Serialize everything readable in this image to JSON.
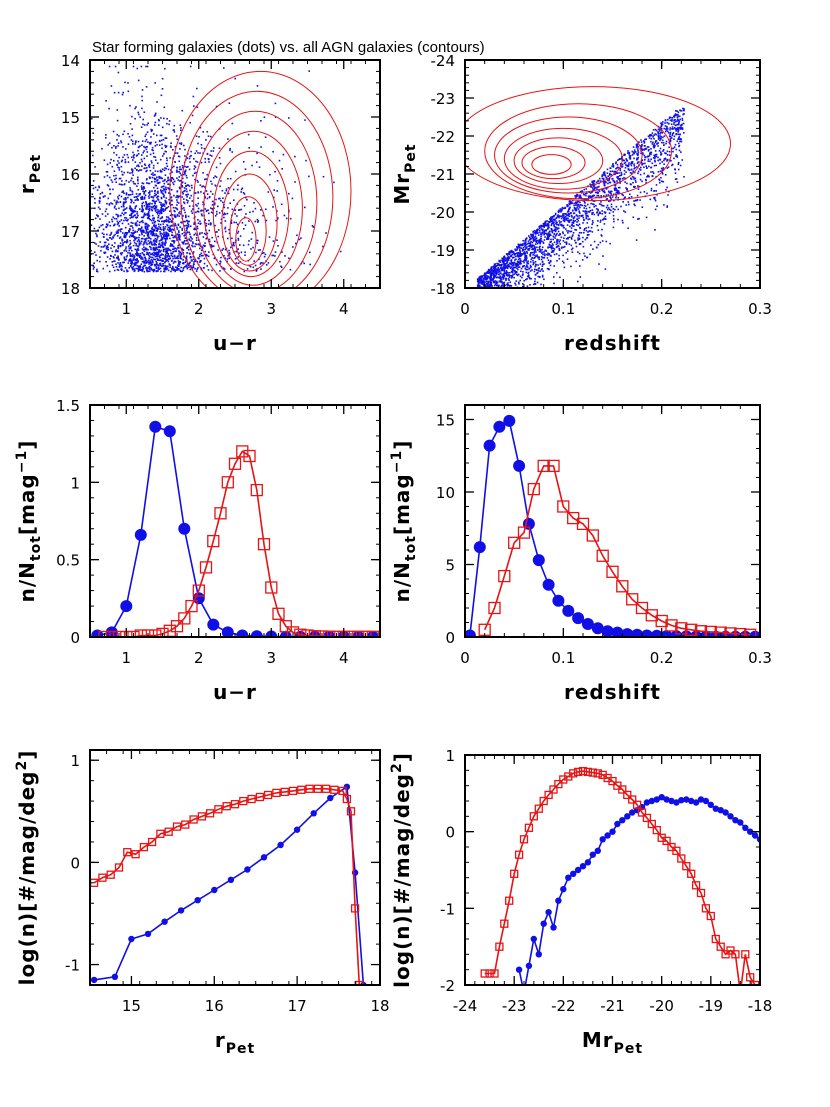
{
  "figure": {
    "title": "Star forming galaxies (dots) vs. all AGN galaxies (contours)"
  },
  "colors": {
    "sf": "#1010e6",
    "agn": "#e61414",
    "axis": "#000000"
  },
  "chart_data": [
    {
      "id": "p1",
      "type": "scatter",
      "xlabel": "u−r",
      "ylabel": "r",
      "ylabel_sub": "Pet",
      "xlim": [
        0.5,
        4.5
      ],
      "ylim": [
        18,
        14
      ],
      "xticks": [
        1,
        2,
        3,
        4
      ],
      "xtick_labels": [
        "1",
        "2",
        "3",
        "4"
      ],
      "yticks": [
        14,
        15,
        16,
        17,
        18
      ],
      "ytick_labels": [
        "14",
        "15",
        "16",
        "17",
        "18"
      ],
      "series": [
        {
          "name": "Star forming galaxies (dots)",
          "kind": "scatter-cloud",
          "color": "sf"
        },
        {
          "name": "All AGN galaxies (contours)",
          "kind": "contours",
          "color": "agn",
          "levels": [
            {
              "cx": 2.85,
              "cy": 16.3,
              "rx": 1.25,
              "ry": 2.1
            },
            {
              "cx": 2.8,
              "cy": 16.4,
              "rx": 1.05,
              "ry": 1.85
            },
            {
              "cx": 2.78,
              "cy": 16.5,
              "rx": 0.85,
              "ry": 1.6
            },
            {
              "cx": 2.75,
              "cy": 16.6,
              "rx": 0.68,
              "ry": 1.35
            },
            {
              "cx": 2.72,
              "cy": 16.7,
              "rx": 0.52,
              "ry": 1.1
            },
            {
              "cx": 2.7,
              "cy": 16.85,
              "rx": 0.38,
              "ry": 0.85
            },
            {
              "cx": 2.68,
              "cy": 17.0,
              "rx": 0.25,
              "ry": 0.6
            },
            {
              "cx": 2.65,
              "cy": 17.15,
              "rx": 0.14,
              "ry": 0.38
            }
          ]
        }
      ]
    },
    {
      "id": "p2",
      "type": "scatter",
      "xlabel": "redshift",
      "ylabel": "Mr",
      "ylabel_sub": "Pet",
      "xlim": [
        0,
        0.3
      ],
      "ylim": [
        -18,
        -24
      ],
      "xticks": [
        0,
        0.1,
        0.2,
        0.3
      ],
      "xtick_labels": [
        "0",
        "0.1",
        "0.2",
        "0.3"
      ],
      "yticks": [
        -24,
        -23,
        -22,
        -21,
        -20,
        -19,
        -18
      ],
      "ytick_labels": [
        "-24",
        "-23",
        "-22",
        "-21",
        "-20",
        "-19",
        "-18"
      ],
      "series": [
        {
          "name": "Star forming galaxies (dots)",
          "kind": "scatter-cloud",
          "color": "sf"
        },
        {
          "name": "All AGN galaxies (contours)",
          "kind": "contours",
          "color": "agn",
          "levels": [
            {
              "cx": 0.13,
              "cy": -21.8,
              "rx": 0.14,
              "ry": 1.5
            },
            {
              "cx": 0.115,
              "cy": -21.6,
              "rx": 0.095,
              "ry": 1.25
            },
            {
              "cx": 0.105,
              "cy": -21.5,
              "rx": 0.075,
              "ry": 1.0
            },
            {
              "cx": 0.1,
              "cy": -21.4,
              "rx": 0.06,
              "ry": 0.8
            },
            {
              "cx": 0.095,
              "cy": -21.35,
              "rx": 0.045,
              "ry": 0.6
            },
            {
              "cx": 0.09,
              "cy": -21.3,
              "rx": 0.032,
              "ry": 0.42
            },
            {
              "cx": 0.088,
              "cy": -21.25,
              "rx": 0.02,
              "ry": 0.26
            }
          ]
        }
      ]
    },
    {
      "id": "p3",
      "type": "line",
      "xlabel": "u−r",
      "ylabel": "n/N",
      "ylabel_sub": "tot",
      "ylabel_unit": "[mag",
      "ylabel_sup": "−1",
      "ylabel_close": "]",
      "xlim": [
        0.5,
        4.5
      ],
      "ylim": [
        0,
        1.5
      ],
      "xticks": [
        1,
        2,
        3,
        4
      ],
      "xtick_labels": [
        "1",
        "2",
        "3",
        "4"
      ],
      "yticks": [
        0,
        0.5,
        1,
        1.5
      ],
      "ytick_labels": [
        "0",
        "0.5",
        "1",
        "1.5"
      ],
      "series": [
        {
          "name": "Star forming",
          "color": "sf",
          "marker": "circle",
          "x": [
            0.6,
            0.8,
            1.0,
            1.2,
            1.4,
            1.6,
            1.8,
            2.0,
            2.2,
            2.4,
            2.6,
            2.8,
            3.0,
            3.2,
            3.4,
            3.6,
            3.8,
            4.0,
            4.2,
            4.4
          ],
          "y": [
            0.01,
            0.03,
            0.2,
            0.66,
            1.36,
            1.33,
            0.7,
            0.25,
            0.08,
            0.03,
            0.01,
            0.005,
            0.003,
            0.002,
            0.001,
            0.001,
            0.001,
            0.001,
            0.001,
            0.001
          ]
        },
        {
          "name": "AGN",
          "color": "agn",
          "marker": "square",
          "x": [
            0.7,
            0.8,
            0.9,
            1.0,
            1.1,
            1.2,
            1.3,
            1.4,
            1.5,
            1.6,
            1.7,
            1.8,
            1.9,
            2.0,
            2.1,
            2.2,
            2.3,
            2.4,
            2.5,
            2.6,
            2.7,
            2.8,
            2.9,
            3.0,
            3.1,
            3.2,
            3.3,
            3.4,
            3.5,
            3.6,
            3.7,
            3.8,
            3.9,
            4.0,
            4.1,
            4.2,
            4.3,
            4.4
          ],
          "y": [
            0.0,
            0.0,
            0.0,
            0.0,
            0.0,
            0.01,
            0.01,
            0.01,
            0.02,
            0.04,
            0.07,
            0.12,
            0.2,
            0.3,
            0.45,
            0.62,
            0.8,
            1.0,
            1.12,
            1.2,
            1.17,
            0.95,
            0.6,
            0.32,
            0.15,
            0.07,
            0.03,
            0.015,
            0.01,
            0.005,
            0.003,
            0.002,
            0.001,
            0.001,
            0.001,
            0.001,
            0.001,
            0.001
          ]
        }
      ]
    },
    {
      "id": "p4",
      "type": "line",
      "xlabel": "redshift",
      "ylabel": "n/N",
      "ylabel_sub": "tot",
      "ylabel_unit": "[mag",
      "ylabel_sup": "−1",
      "ylabel_close": "]",
      "xlim": [
        0,
        0.3
      ],
      "ylim": [
        0,
        16
      ],
      "xticks": [
        0,
        0.1,
        0.2,
        0.3
      ],
      "xtick_labels": [
        "0",
        "0.1",
        "0.2",
        "0.3"
      ],
      "yticks": [
        0,
        5,
        10,
        15
      ],
      "ytick_labels": [
        "0",
        "5",
        "10",
        "15"
      ],
      "series": [
        {
          "name": "Star forming",
          "color": "sf",
          "marker": "circle",
          "x": [
            0.005,
            0.015,
            0.025,
            0.035,
            0.045,
            0.055,
            0.065,
            0.075,
            0.085,
            0.095,
            0.105,
            0.115,
            0.125,
            0.135,
            0.145,
            0.155,
            0.165,
            0.175,
            0.185,
            0.195,
            0.205,
            0.215,
            0.225,
            0.235,
            0.245,
            0.255,
            0.265,
            0.275,
            0.285,
            0.295
          ],
          "y": [
            0.1,
            6.2,
            13.2,
            14.5,
            14.9,
            11.8,
            7.8,
            5.3,
            3.6,
            2.5,
            1.8,
            1.3,
            0.9,
            0.6,
            0.4,
            0.3,
            0.2,
            0.15,
            0.1,
            0.08,
            0.06,
            0.05,
            0.04,
            0.03,
            0.03,
            0.02,
            0.02,
            0.02,
            0.02,
            0.02
          ]
        },
        {
          "name": "AGN",
          "color": "agn",
          "marker": "square",
          "x": [
            0.02,
            0.03,
            0.04,
            0.05,
            0.06,
            0.07,
            0.08,
            0.09,
            0.1,
            0.11,
            0.12,
            0.13,
            0.14,
            0.15,
            0.16,
            0.17,
            0.18,
            0.19,
            0.2,
            0.21,
            0.22,
            0.23,
            0.24,
            0.25,
            0.26,
            0.27,
            0.28,
            0.29
          ],
          "y": [
            0.5,
            2.0,
            4.2,
            6.5,
            7.2,
            10.2,
            11.8,
            11.8,
            9.0,
            8.2,
            7.8,
            7.0,
            5.6,
            4.5,
            3.5,
            2.6,
            2.0,
            1.5,
            1.1,
            0.8,
            0.6,
            0.5,
            0.4,
            0.35,
            0.3,
            0.25,
            0.2,
            0.15
          ]
        }
      ]
    },
    {
      "id": "p5",
      "type": "line",
      "xlabel": "r",
      "xlabel_sub": "Pet",
      "ylabel": "log(n)[#/mag/deg",
      "ylabel_sup": "2",
      "ylabel_close": "]",
      "xlim": [
        14.5,
        18
      ],
      "ylim": [
        -1.2,
        1.1
      ],
      "xticks": [
        15,
        16,
        17,
        18
      ],
      "xtick_labels": [
        "15",
        "16",
        "17",
        "18"
      ],
      "yticks": [
        -1,
        0,
        1
      ],
      "ytick_labels": [
        "-1",
        "0",
        "1"
      ],
      "series": [
        {
          "name": "Star forming",
          "color": "sf",
          "marker": "dot",
          "x": [
            14.55,
            14.8,
            15.0,
            15.2,
            15.4,
            15.6,
            15.8,
            16.0,
            16.2,
            16.4,
            16.6,
            16.8,
            17.0,
            17.2,
            17.4,
            17.6,
            17.7,
            17.8
          ],
          "y": [
            -1.15,
            -1.12,
            -0.75,
            -0.7,
            -0.58,
            -0.47,
            -0.37,
            -0.27,
            -0.17,
            -0.07,
            0.05,
            0.17,
            0.32,
            0.48,
            0.63,
            0.74,
            -0.1,
            -1.2
          ]
        },
        {
          "name": "AGN",
          "color": "agn",
          "marker": "square",
          "x": [
            14.55,
            14.65,
            14.75,
            14.85,
            14.95,
            15.05,
            15.15,
            15.25,
            15.35,
            15.45,
            15.55,
            15.65,
            15.75,
            15.85,
            15.95,
            16.05,
            16.15,
            16.25,
            16.35,
            16.45,
            16.55,
            16.65,
            16.75,
            16.85,
            16.95,
            17.05,
            17.15,
            17.25,
            17.35,
            17.45,
            17.55,
            17.6,
            17.65,
            17.7,
            17.75
          ],
          "y": [
            -0.2,
            -0.15,
            -0.12,
            -0.05,
            0.1,
            0.08,
            0.15,
            0.2,
            0.28,
            0.3,
            0.35,
            0.37,
            0.42,
            0.45,
            0.48,
            0.52,
            0.55,
            0.57,
            0.6,
            0.62,
            0.64,
            0.66,
            0.68,
            0.69,
            0.7,
            0.71,
            0.72,
            0.72,
            0.72,
            0.71,
            0.7,
            0.62,
            0.5,
            -0.45,
            -1.2
          ]
        }
      ]
    },
    {
      "id": "p6",
      "type": "line",
      "xlabel": "Mr",
      "xlabel_sub": "Pet",
      "ylabel": "log(n)[#/mag/deg",
      "ylabel_sup": "2",
      "ylabel_close": "]",
      "xlim": [
        -24,
        -18
      ],
      "ylim": [
        -2,
        1
      ],
      "xticks": [
        -24,
        -23,
        -22,
        -21,
        -20,
        -19,
        -18
      ],
      "xtick_labels": [
        "-24",
        "-23",
        "-22",
        "-21",
        "-20",
        "-19",
        "-18"
      ],
      "yticks": [
        -2,
        -1,
        0,
        1
      ],
      "ytick_labels": [
        "-2",
        "-1",
        "0",
        "1"
      ],
      "series": [
        {
          "name": "Star forming",
          "color": "sf",
          "marker": "dot",
          "x": [
            -22.9,
            -22.8,
            -22.7,
            -22.6,
            -22.5,
            -22.4,
            -22.3,
            -22.2,
            -22.1,
            -22.0,
            -21.9,
            -21.8,
            -21.7,
            -21.6,
            -21.5,
            -21.4,
            -21.3,
            -21.2,
            -21.1,
            -21.0,
            -20.9,
            -20.8,
            -20.7,
            -20.6,
            -20.5,
            -20.4,
            -20.3,
            -20.2,
            -20.1,
            -20.0,
            -19.9,
            -19.8,
            -19.7,
            -19.6,
            -19.5,
            -19.4,
            -19.3,
            -19.2,
            -19.1,
            -19.0,
            -18.9,
            -18.8,
            -18.7,
            -18.6,
            -18.5,
            -18.4,
            -18.3,
            -18.2,
            -18.1,
            -18.0
          ],
          "y": [
            -1.8,
            -2.1,
            -1.75,
            -1.4,
            -1.6,
            -1.2,
            -1.05,
            -1.25,
            -0.9,
            -0.75,
            -0.6,
            -0.55,
            -0.5,
            -0.45,
            -0.4,
            -0.3,
            -0.25,
            -0.1,
            -0.05,
            0.0,
            0.1,
            0.15,
            0.2,
            0.25,
            0.28,
            0.32,
            0.38,
            0.4,
            0.42,
            0.45,
            0.42,
            0.4,
            0.38,
            0.41,
            0.42,
            0.4,
            0.38,
            0.42,
            0.4,
            0.35,
            0.3,
            0.28,
            0.25,
            0.2,
            0.15,
            0.12,
            0.05,
            0.0,
            -0.05,
            -0.1
          ]
        },
        {
          "name": "AGN",
          "color": "agn",
          "marker": "square",
          "x": [
            -23.6,
            -23.5,
            -23.4,
            -23.3,
            -23.2,
            -23.1,
            -23.0,
            -22.9,
            -22.8,
            -22.7,
            -22.6,
            -22.5,
            -22.4,
            -22.3,
            -22.2,
            -22.1,
            -22.0,
            -21.9,
            -21.8,
            -21.7,
            -21.6,
            -21.5,
            -21.4,
            -21.3,
            -21.2,
            -21.1,
            -21.0,
            -20.9,
            -20.8,
            -20.7,
            -20.6,
            -20.5,
            -20.4,
            -20.3,
            -20.2,
            -20.1,
            -20.0,
            -19.9,
            -19.8,
            -19.7,
            -19.6,
            -19.5,
            -19.4,
            -19.3,
            -19.2,
            -19.1,
            -19.0,
            -18.9,
            -18.8,
            -18.7,
            -18.6,
            -18.5,
            -18.4,
            -18.3,
            -18.2,
            -18.1
          ],
          "y": [
            -1.85,
            -1.85,
            -1.85,
            -1.5,
            -1.2,
            -0.9,
            -0.55,
            -0.3,
            -0.1,
            0.05,
            0.2,
            0.3,
            0.4,
            0.48,
            0.55,
            0.62,
            0.68,
            0.72,
            0.76,
            0.78,
            0.79,
            0.78,
            0.77,
            0.76,
            0.74,
            0.7,
            0.66,
            0.6,
            0.55,
            0.48,
            0.42,
            0.35,
            0.25,
            0.18,
            0.1,
            0.02,
            -0.08,
            -0.12,
            -0.2,
            -0.25,
            -0.35,
            -0.45,
            -0.55,
            -0.7,
            -0.8,
            -1.0,
            -1.1,
            -1.4,
            -1.5,
            -1.6,
            -1.55,
            -1.6,
            -2.1,
            -1.6,
            -1.9,
            -2.0
          ]
        }
      ]
    }
  ]
}
